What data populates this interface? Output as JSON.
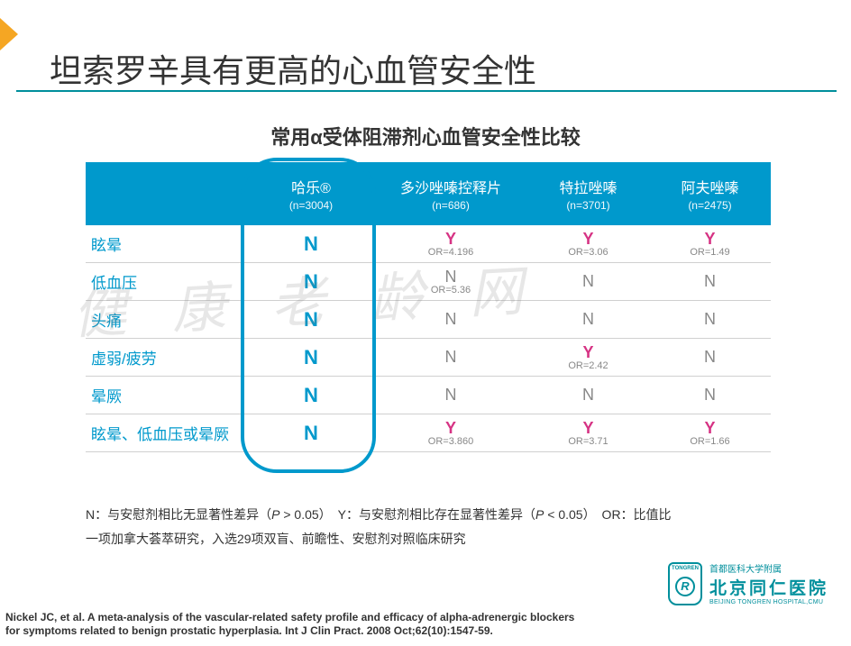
{
  "title": "坦索罗辛具有更高的心血管安全性",
  "subtitle": "常用α受体阻滞剂心血管安全性比较",
  "watermark": "健康老龄网",
  "table": {
    "columns": [
      {
        "label": "",
        "sub": ""
      },
      {
        "label": "哈乐®",
        "sub": "(n=3004)"
      },
      {
        "label": "多沙唑嗪控释片",
        "sub": "(n=686)"
      },
      {
        "label": "特拉唑嗪",
        "sub": "(n=3701)"
      },
      {
        "label": "阿夫唑嗪",
        "sub": "(n=2475)"
      }
    ],
    "rows": [
      {
        "label": "眩晕",
        "cells": [
          {
            "v": "N"
          },
          {
            "v": "Y",
            "or": "OR=4.196"
          },
          {
            "v": "Y",
            "or": "OR=3.06"
          },
          {
            "v": "Y",
            "or": "OR=1.49"
          }
        ]
      },
      {
        "label": "低血压",
        "cells": [
          {
            "v": "N"
          },
          {
            "v": "N",
            "or": "OR=5.36"
          },
          {
            "v": "N"
          },
          {
            "v": "N"
          }
        ]
      },
      {
        "label": "头痛",
        "cells": [
          {
            "v": "N"
          },
          {
            "v": "N"
          },
          {
            "v": "N"
          },
          {
            "v": "N"
          }
        ]
      },
      {
        "label": "虚弱/疲劳",
        "cells": [
          {
            "v": "N"
          },
          {
            "v": "N"
          },
          {
            "v": "Y",
            "or": "OR=2.42"
          },
          {
            "v": "N"
          }
        ]
      },
      {
        "label": "晕厥",
        "cells": [
          {
            "v": "N"
          },
          {
            "v": "N"
          },
          {
            "v": "N"
          },
          {
            "v": "N"
          }
        ]
      },
      {
        "label": "眩晕、低血压或晕厥",
        "cells": [
          {
            "v": "N"
          },
          {
            "v": "Y",
            "or": "OR=3.860"
          },
          {
            "v": "Y",
            "or": "OR=3.71"
          },
          {
            "v": "Y",
            "or": "OR=1.66"
          }
        ]
      }
    ],
    "highlight_col": 1,
    "colors": {
      "header_bg": "#0099cc",
      "n": "#888888",
      "y": "#d63384",
      "label": "#0099cc",
      "border": "#d0d0d0",
      "highlight_border": "#0099cc"
    }
  },
  "legend": {
    "line1_parts": [
      "N：与安慰剂相比无显著性差异（",
      "P",
      " > 0.05）　Y：与安慰剂相比存在显著性差异（",
      "P",
      " < 0.05）　OR：比值比"
    ],
    "line2": "一项加拿大荟萃研究，入选29项双盲、前瞻性、安慰剂对照临床研究"
  },
  "hospital": {
    "badge_top": "TONGREN",
    "badge_letter": "R",
    "line1": "首都医科大学附属",
    "line2": "北京同仁医院",
    "line3": "BEIJING TONGREN HOSPITAL,CMU"
  },
  "citation": "Nickel JC, et al. A meta-analysis of the vascular-related safety profile and efficacy of alpha-adrenergic blockers for symptoms related to benign prostatic hyperplasia. Int J Clin Pract. 2008 Oct;62(10):1547-59."
}
